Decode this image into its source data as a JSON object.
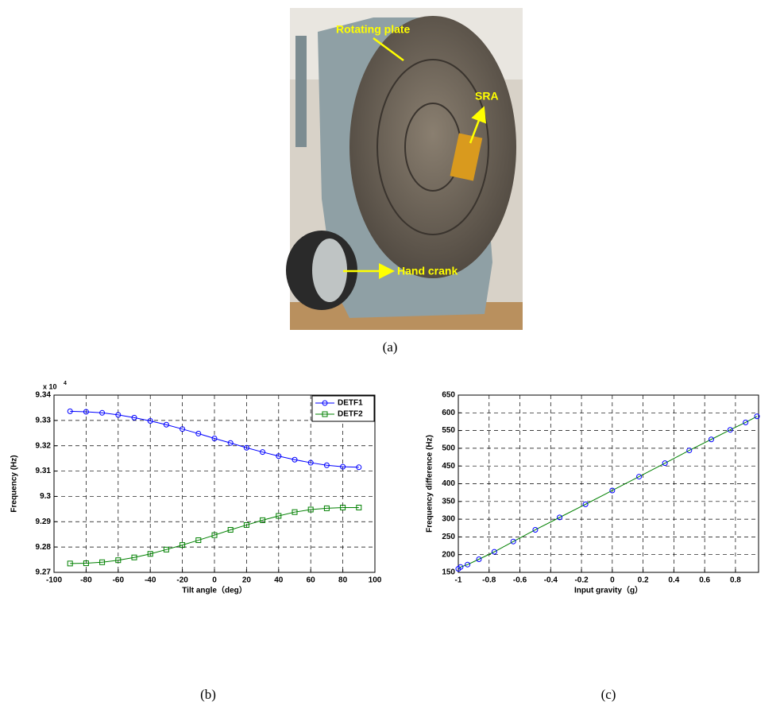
{
  "photo": {
    "annotations": [
      "Rotating plate",
      "SRA",
      "Hand crank"
    ]
  },
  "captions": [
    "(a)",
    "(b)",
    "(c)"
  ],
  "chart_data": [
    {
      "type": "line",
      "x_label": "Tilt angle（deg）",
      "y_label": "Frequency  (Hz)",
      "y_multiplier": {
        "base": "x 10",
        "exponent": "4"
      },
      "x": [
        -90,
        -80,
        -70,
        -60,
        -50,
        -40,
        -30,
        -20,
        -10,
        0,
        10,
        20,
        30,
        40,
        50,
        60,
        70,
        80,
        90
      ],
      "series": [
        {
          "name": "DETF1",
          "color": "#0000ff",
          "marker": "circle",
          "values": [
            9.3336,
            9.3334,
            9.333,
            9.3322,
            9.3311,
            9.3298,
            9.3283,
            9.3266,
            9.3248,
            9.3229,
            9.3211,
            9.3192,
            9.3175,
            9.3159,
            9.3145,
            9.3133,
            9.3123,
            9.3117,
            9.3115
          ]
        },
        {
          "name": "DETF2",
          "color": "#008000",
          "marker": "square",
          "values": [
            9.2735,
            9.2736,
            9.274,
            9.2748,
            9.2759,
            9.2773,
            9.279,
            9.2808,
            9.2827,
            9.2847,
            9.2868,
            9.2887,
            9.2906,
            9.2923,
            9.2938,
            9.2948,
            9.2953,
            9.2956,
            9.2956
          ]
        }
      ],
      "xlim": [
        -100,
        100
      ],
      "xticks": [
        -100,
        -80,
        -60,
        -40,
        -20,
        0,
        20,
        40,
        60,
        80,
        100
      ],
      "ylim": [
        9.27,
        9.34
      ],
      "yticks": [
        9.27,
        9.28,
        9.29,
        9.3,
        9.31,
        9.32,
        9.33,
        9.34
      ],
      "grid": true,
      "legend": "upper-right"
    },
    {
      "type": "line",
      "x_label": "Input gravity（g）",
      "y_label": "Frequency difference (Hz)",
      "x": [
        -1,
        -0.985,
        -0.94,
        -0.866,
        -0.766,
        -0.643,
        -0.5,
        -0.342,
        -0.174,
        0,
        0.174,
        0.342,
        0.5,
        0.643,
        0.766,
        0.866,
        0.94
      ],
      "series": [
        {
          "color": "#008000",
          "marker_color": "#0000ff",
          "marker": "circle",
          "values": [
            160,
            165,
            172,
            187,
            208,
            237,
            270,
            305,
            342,
            381,
            420,
            458,
            494,
            525,
            552,
            573,
            590
          ]
        }
      ],
      "xlim": [
        -1,
        0.95
      ],
      "xticks": [
        -1,
        -0.8,
        -0.6,
        -0.4,
        -0.2,
        0,
        0.2,
        0.4,
        0.6,
        0.8
      ],
      "ylim": [
        150,
        650
      ],
      "yticks": [
        150,
        200,
        250,
        300,
        350,
        400,
        450,
        500,
        550,
        600,
        650
      ],
      "grid": true
    }
  ]
}
